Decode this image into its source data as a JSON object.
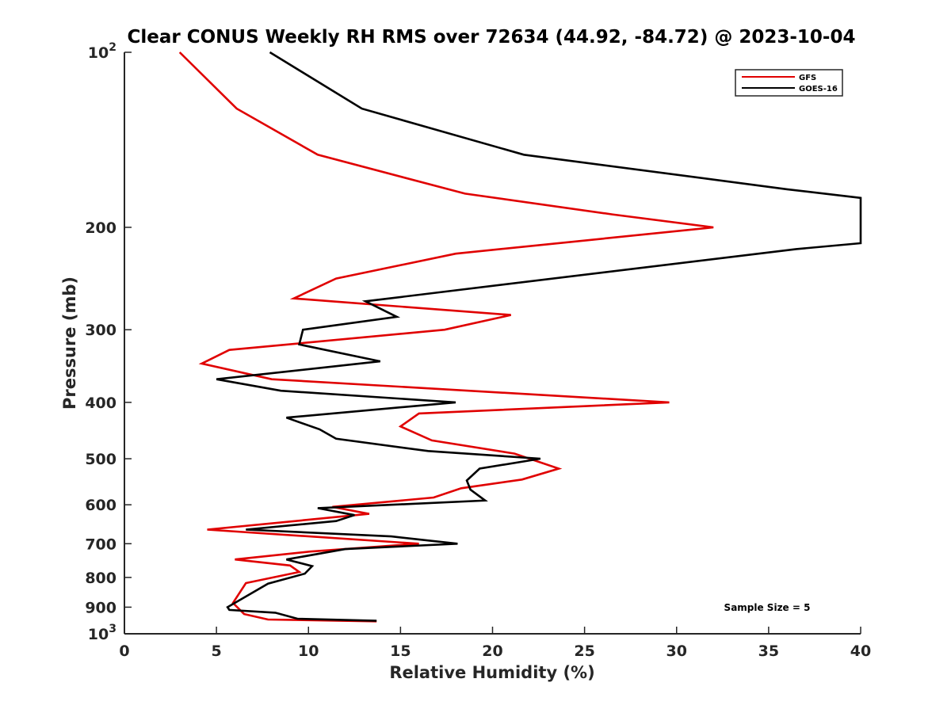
{
  "chart_data": {
    "type": "line",
    "title": "Clear CONUS Weekly RH RMS over 72634 (44.92, -84.72) @ 2023-10-04",
    "xlabel": "Relative Humidity (%)",
    "ylabel": "Pressure (mb)",
    "xlim": [
      0,
      40
    ],
    "ylim": [
      100,
      1000
    ],
    "yscale": "log",
    "y_reversed": true,
    "grid": false,
    "legend_position": "top-right",
    "xticks": [
      0,
      5,
      10,
      15,
      20,
      25,
      30,
      35,
      40
    ],
    "xtick_labels": [
      "0",
      "5",
      "10",
      "15",
      "20",
      "25",
      "30",
      "35",
      "40"
    ],
    "yticks_mid": [
      200,
      300,
      400,
      500,
      600,
      700,
      800,
      900
    ],
    "yticks_mid_labels": [
      "200",
      "300",
      "400",
      "500",
      "600",
      "700",
      "800",
      "900"
    ],
    "ytick_top": {
      "base": "10",
      "exp": "2"
    },
    "ytick_bottom": {
      "base": "10",
      "exp": "3"
    },
    "annotation": "Sample Size = 5",
    "series": [
      {
        "name": "GFS",
        "color": "#e00000",
        "points": [
          [
            3.0,
            100
          ],
          [
            6.1,
            125
          ],
          [
            10.5,
            150
          ],
          [
            18.5,
            175
          ],
          [
            26.5,
            190
          ],
          [
            32.0,
            200
          ],
          [
            18.0,
            222
          ],
          [
            11.5,
            245
          ],
          [
            9.2,
            265
          ],
          [
            21.0,
            283
          ],
          [
            17.4,
            300
          ],
          [
            5.7,
            325
          ],
          [
            4.2,
            343
          ],
          [
            8.0,
            365
          ],
          [
            29.6,
            400
          ],
          [
            16.0,
            418
          ],
          [
            15.0,
            440
          ],
          [
            16.7,
            465
          ],
          [
            21.2,
            490
          ],
          [
            23.6,
            520
          ],
          [
            21.6,
            543
          ],
          [
            18.3,
            562
          ],
          [
            16.8,
            583
          ],
          [
            11.3,
            605
          ],
          [
            13.3,
            622
          ],
          [
            4.5,
            662
          ],
          [
            16.0,
            700
          ],
          [
            10.1,
            722
          ],
          [
            6.0,
            745
          ],
          [
            9.0,
            763
          ],
          [
            9.5,
            783
          ],
          [
            6.6,
            818
          ],
          [
            5.9,
            885
          ],
          [
            6.5,
            925
          ],
          [
            7.8,
            945
          ],
          [
            13.7,
            952
          ]
        ]
      },
      {
        "name": "GOES-16",
        "color": "#000000",
        "points": [
          [
            7.9,
            100
          ],
          [
            12.9,
            125
          ],
          [
            21.7,
            150
          ],
          [
            36.0,
            172
          ],
          [
            40.0,
            178
          ],
          [
            40.0,
            213
          ],
          [
            36.5,
            218
          ],
          [
            13.1,
            268
          ],
          [
            14.8,
            285
          ],
          [
            9.7,
            300
          ],
          [
            9.5,
            318
          ],
          [
            13.9,
            340
          ],
          [
            5.0,
            365
          ],
          [
            8.5,
            382
          ],
          [
            18.0,
            400
          ],
          [
            8.8,
            425
          ],
          [
            10.6,
            445
          ],
          [
            11.5,
            462
          ],
          [
            16.5,
            485
          ],
          [
            22.6,
            500
          ],
          [
            19.3,
            520
          ],
          [
            18.6,
            545
          ],
          [
            18.8,
            565
          ],
          [
            19.6,
            590
          ],
          [
            10.5,
            608
          ],
          [
            12.5,
            625
          ],
          [
            11.5,
            640
          ],
          [
            6.6,
            662
          ],
          [
            14.5,
            680
          ],
          [
            18.1,
            700
          ],
          [
            12.0,
            715
          ],
          [
            8.8,
            745
          ],
          [
            10.2,
            765
          ],
          [
            9.8,
            788
          ],
          [
            7.8,
            820
          ],
          [
            5.6,
            900
          ],
          [
            5.7,
            910
          ],
          [
            8.2,
            920
          ],
          [
            9.4,
            942
          ],
          [
            13.7,
            950
          ]
        ]
      }
    ]
  }
}
